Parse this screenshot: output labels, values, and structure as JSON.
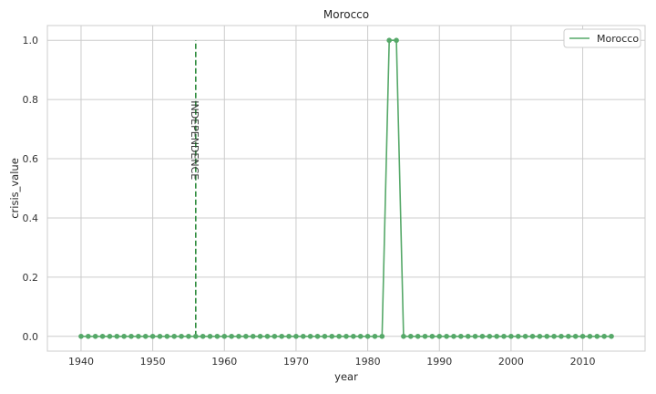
{
  "chart_data": {
    "type": "line",
    "title": "Morocco",
    "xlabel": "year",
    "ylabel": "crisis_value",
    "xlim": [
      1935.3,
      2018.7
    ],
    "ylim": [
      -0.05,
      1.05
    ],
    "xticks": [
      1940,
      1950,
      1960,
      1970,
      1980,
      1990,
      2000,
      2010
    ],
    "yticks": [
      0.0,
      0.2,
      0.4,
      0.6,
      0.8,
      1.0
    ],
    "xtick_labels": [
      "1940",
      "1950",
      "1960",
      "1970",
      "1980",
      "1990",
      "2000",
      "2010"
    ],
    "ytick_labels": [
      "0.0",
      "0.2",
      "0.4",
      "0.6",
      "0.8",
      "1.0"
    ],
    "grid": true,
    "legend_position": "top-right",
    "series": [
      {
        "name": "Morocco",
        "color": "#55a868",
        "x_start": 1940,
        "x_end": 2014,
        "values": [
          0,
          0,
          0,
          0,
          0,
          0,
          0,
          0,
          0,
          0,
          0,
          0,
          0,
          0,
          0,
          0,
          0,
          0,
          0,
          0,
          0,
          0,
          0,
          0,
          0,
          0,
          0,
          0,
          0,
          0,
          0,
          0,
          0,
          0,
          0,
          0,
          0,
          0,
          0,
          0,
          0,
          0,
          0,
          1,
          1,
          0,
          0,
          0,
          0,
          0,
          0,
          0,
          0,
          0,
          0,
          0,
          0,
          0,
          0,
          0,
          0,
          0,
          0,
          0,
          0,
          0,
          0,
          0,
          0,
          0,
          0,
          0,
          0,
          0,
          0
        ]
      }
    ],
    "annotations": [
      {
        "label": "INDEPENDENCE",
        "x": 1956,
        "y_from": 0.0,
        "y_to": 1.0,
        "color": "#2a8a3a",
        "style": "dashed"
      }
    ]
  }
}
